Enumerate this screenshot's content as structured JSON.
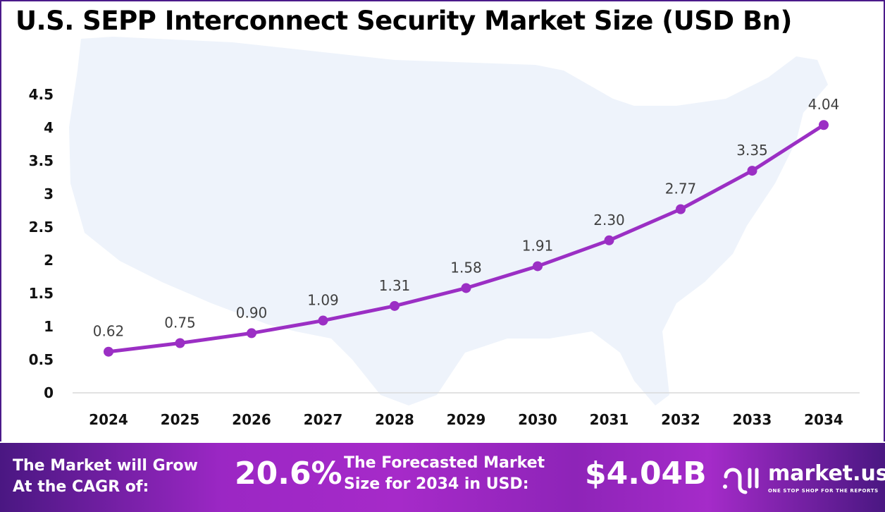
{
  "chart_data": {
    "type": "line",
    "title": "U.S. SEPP Interconnect Security Market Size (USD Bn)",
    "categories": [
      "2024",
      "2025",
      "2026",
      "2027",
      "2028",
      "2029",
      "2030",
      "2031",
      "2032",
      "2033",
      "2034"
    ],
    "values": [
      0.62,
      0.75,
      0.9,
      1.09,
      1.31,
      1.58,
      1.91,
      2.3,
      2.77,
      3.35,
      4.04
    ],
    "data_labels": [
      "0.62",
      "0.75",
      "0.90",
      "1.09",
      "1.31",
      "1.58",
      "1.91",
      "2.30",
      "2.77",
      "3.35",
      "4.04"
    ],
    "ylim": [
      0,
      4.5
    ],
    "yticks": [
      "0",
      "0.5",
      "1",
      "1.5",
      "2",
      "2.5",
      "3",
      "3.5",
      "4",
      "4.5"
    ],
    "grid": false,
    "line_color": "#9b2fc4",
    "xlabel": "",
    "ylabel": ""
  },
  "footer": {
    "cagr_label_1": "The Market will Grow",
    "cagr_label_2": "At the CAGR of:",
    "cagr_value": "20.6%",
    "forecast_label_1": "The Forecasted Market",
    "forecast_label_2": "Size for 2034 in USD:",
    "forecast_value": "$4.04B",
    "brand_name": "market.us",
    "brand_tagline": "ONE STOP SHOP FOR THE REPORTS"
  }
}
